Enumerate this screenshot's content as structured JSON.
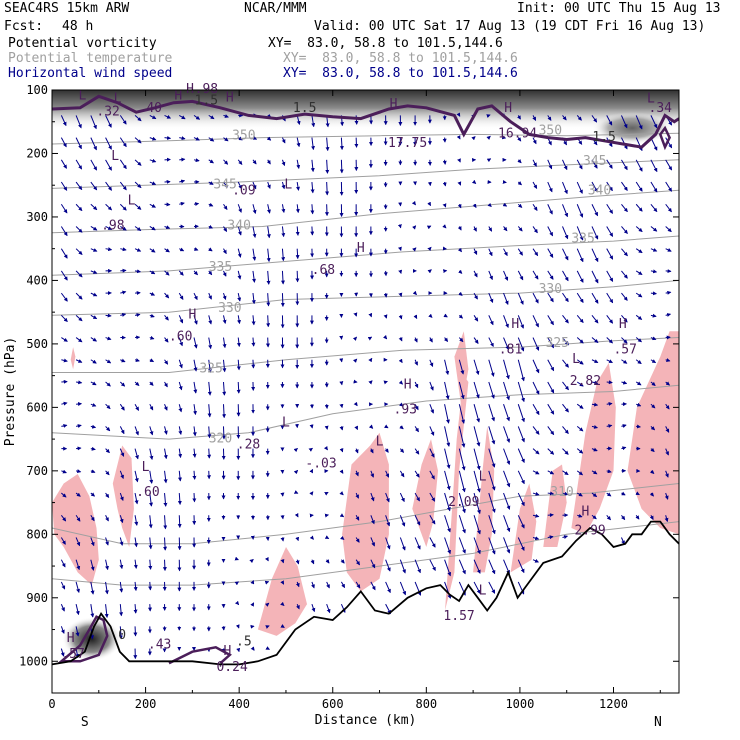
{
  "header": {
    "model": "SEAC4RS 15km ARW",
    "center": "NCAR/MMM",
    "init": "Init: 00 UTC Thu 15 Aug 13",
    "fcst_label": "Fcst:",
    "fcst_value": "48 h",
    "valid": "Valid: 00 UTC Sat 17 Aug 13 (19 CDT Fri 16 Aug 13)",
    "fields": [
      {
        "name": "Potential vorticity",
        "xy": "XY=  83.0, 58.8 to 101.5,144.6"
      },
      {
        "name": "Potential temperature",
        "xy": "XY=  83.0, 58.8 to 101.5,144.6"
      },
      {
        "name": "Horizontal wind speed",
        "xy": "XY=  83.0, 58.8 to 101.5,144.6"
      }
    ]
  },
  "chart_data": {
    "type": "cross-section",
    "ylabel": "Pressure (hPa)",
    "xlabel": "Distance (km)",
    "x_ticks": [
      0,
      200,
      400,
      600,
      800,
      1000,
      1200
    ],
    "y_ticks": [
      100,
      200,
      300,
      400,
      500,
      600,
      700,
      800,
      900,
      1000
    ],
    "xlim": [
      0,
      1340
    ],
    "ylim": [
      1050,
      100
    ],
    "endpoints": {
      "left": "S",
      "right": "N"
    },
    "theta_labels": [
      {
        "x": 410,
        "p": 178,
        "v": "350"
      },
      {
        "x": 1065,
        "p": 170,
        "v": "350"
      },
      {
        "x": 1160,
        "p": 218,
        "v": "345"
      },
      {
        "x": 370,
        "p": 255,
        "v": "345"
      },
      {
        "x": 1170,
        "p": 265,
        "v": "340"
      },
      {
        "x": 400,
        "p": 320,
        "v": "340"
      },
      {
        "x": 1135,
        "p": 340,
        "v": "335"
      },
      {
        "x": 360,
        "p": 385,
        "v": "335"
      },
      {
        "x": 1065,
        "p": 420,
        "v": "330"
      },
      {
        "x": 380,
        "p": 450,
        "v": "330"
      },
      {
        "x": 1080,
        "p": 505,
        "v": "325"
      },
      {
        "x": 340,
        "p": 545,
        "v": "325"
      },
      {
        "x": 360,
        "p": 655,
        "v": "320"
      },
      {
        "x": 1090,
        "p": 740,
        "v": "310"
      }
    ],
    "pv_labels": [
      {
        "x": 330,
        "p": 123,
        "v": "1.5"
      },
      {
        "x": 540,
        "p": 135,
        "v": "1.5"
      },
      {
        "x": 1180,
        "p": 180,
        "v": "1.5"
      },
      {
        "x": 150,
        "p": 965,
        "v": "0"
      },
      {
        "x": 410,
        "p": 975,
        "v": ".5"
      }
    ],
    "extrema": [
      {
        "x": 65,
        "p": 115,
        "t": "L"
      },
      {
        "x": 140,
        "p": 120,
        "t": "L"
      },
      {
        "x": 135,
        "p": 210,
        "t": "L"
      },
      {
        "x": 295,
        "p": 105,
        "t": "H"
      },
      {
        "x": 270,
        "p": 115,
        "t": "H"
      },
      {
        "x": 380,
        "p": 118,
        "t": "H"
      },
      {
        "x": 730,
        "p": 128,
        "t": "H"
      },
      {
        "x": 975,
        "p": 135,
        "t": "H"
      },
      {
        "x": 1280,
        "p": 120,
        "t": "L"
      },
      {
        "x": 505,
        "p": 255,
        "t": "L"
      },
      {
        "x": 170,
        "p": 280,
        "t": "L"
      },
      {
        "x": 660,
        "p": 355,
        "t": "H"
      },
      {
        "x": 300,
        "p": 460,
        "t": "H"
      },
      {
        "x": 990,
        "p": 475,
        "t": "H"
      },
      {
        "x": 1220,
        "p": 475,
        "t": "H"
      },
      {
        "x": 1120,
        "p": 530,
        "t": "L"
      },
      {
        "x": 760,
        "p": 570,
        "t": "H"
      },
      {
        "x": 500,
        "p": 630,
        "t": "L"
      },
      {
        "x": 700,
        "p": 660,
        "t": "L"
      },
      {
        "x": 200,
        "p": 700,
        "t": "L"
      },
      {
        "x": 920,
        "p": 715,
        "t": "L"
      },
      {
        "x": 1140,
        "p": 770,
        "t": "H"
      },
      {
        "x": 920,
        "p": 895,
        "t": "L"
      },
      {
        "x": 40,
        "p": 970,
        "t": "H"
      },
      {
        "x": 375,
        "p": 990,
        "t": "H"
      }
    ],
    "extrema_values": [
      {
        "x": 120,
        "p": 140,
        "v": ".32"
      },
      {
        "x": 210,
        "p": 135,
        "v": ".40"
      },
      {
        "x": 330,
        "p": 105,
        "v": ".98"
      },
      {
        "x": 760,
        "p": 190,
        "v": "17.75"
      },
      {
        "x": 995,
        "p": 175,
        "v": "16.94"
      },
      {
        "x": 1300,
        "p": 135,
        "v": ".34"
      },
      {
        "x": 410,
        "p": 265,
        "v": ".09"
      },
      {
        "x": 130,
        "p": 320,
        "v": ".98"
      },
      {
        "x": 580,
        "p": 390,
        "v": ".68"
      },
      {
        "x": 275,
        "p": 495,
        "v": ".60"
      },
      {
        "x": 980,
        "p": 515,
        "v": ".81"
      },
      {
        "x": 1225,
        "p": 515,
        "v": ".57"
      },
      {
        "x": 1140,
        "p": 565,
        "v": "2.82"
      },
      {
        "x": 755,
        "p": 610,
        "v": ".93"
      },
      {
        "x": 420,
        "p": 665,
        "v": ".28"
      },
      {
        "x": 575,
        "p": 695,
        "v": "-.03"
      },
      {
        "x": 205,
        "p": 740,
        "v": ".60"
      },
      {
        "x": 880,
        "p": 755,
        "v": "2.09"
      },
      {
        "x": 1150,
        "p": 800,
        "v": "2.99"
      },
      {
        "x": 870,
        "p": 935,
        "v": "1.57"
      },
      {
        "x": 45,
        "p": 995,
        "v": ".57"
      },
      {
        "x": 230,
        "p": 980,
        "v": ".43"
      },
      {
        "x": 385,
        "p": 1015,
        "v": "0.24"
      }
    ],
    "colors": {
      "pv": "#4b1e5a",
      "theta": "#a0a0a0",
      "wind": "#00008b",
      "shade": "#f4b4b8",
      "terrain": "#000000"
    }
  }
}
